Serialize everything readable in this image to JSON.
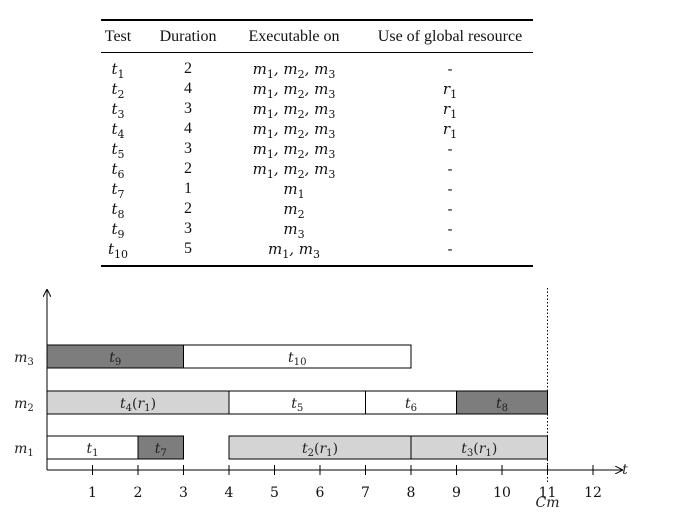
{
  "table": {
    "headers": [
      "Test",
      "Duration",
      "Executable on",
      "Use of global resource"
    ],
    "rows": [
      {
        "test": "t1",
        "duration": "2",
        "exec": "m1, m2, m3",
        "resource": "-"
      },
      {
        "test": "t2",
        "duration": "4",
        "exec": "m1, m2, m3",
        "resource": "r1"
      },
      {
        "test": "t3",
        "duration": "3",
        "exec": "m1, m2, m3",
        "resource": "r1"
      },
      {
        "test": "t4",
        "duration": "4",
        "exec": "m1, m2, m3",
        "resource": "r1"
      },
      {
        "test": "t5",
        "duration": "3",
        "exec": "m1, m2, m3",
        "resource": "-"
      },
      {
        "test": "t6",
        "duration": "2",
        "exec": "m1, m2, m3",
        "resource": "-"
      },
      {
        "test": "t7",
        "duration": "1",
        "exec": "m1",
        "resource": "-"
      },
      {
        "test": "t8",
        "duration": "2",
        "exec": "m2",
        "resource": "-"
      },
      {
        "test": "t9",
        "duration": "3",
        "exec": "m3",
        "resource": "-"
      },
      {
        "test": "t10",
        "duration": "5",
        "exec": "m1, m3",
        "resource": "-"
      }
    ]
  },
  "gantt": {
    "machines": [
      "m3",
      "m2",
      "m1"
    ],
    "axis_label": "t",
    "makespan_label": "Cm",
    "ticks": [
      1,
      2,
      3,
      4,
      5,
      6,
      7,
      8,
      9,
      10,
      11,
      12
    ],
    "makespan": 11,
    "colors": {
      "white": "#ffffff",
      "light": "#d4d4d4",
      "dark": "#7d7d7d"
    },
    "bars": [
      {
        "machine": "m3",
        "label": "t9",
        "start": 0,
        "end": 3,
        "fill": "dark"
      },
      {
        "machine": "m3",
        "label": "t10",
        "start": 3,
        "end": 8,
        "fill": "white"
      },
      {
        "machine": "m2",
        "label": "t4(r1)",
        "start": 0,
        "end": 4,
        "fill": "light"
      },
      {
        "machine": "m2",
        "label": "t5",
        "start": 4,
        "end": 7,
        "fill": "white"
      },
      {
        "machine": "m2",
        "label": "t6",
        "start": 7,
        "end": 9,
        "fill": "white"
      },
      {
        "machine": "m2",
        "label": "t8",
        "start": 9,
        "end": 11,
        "fill": "dark"
      },
      {
        "machine": "m1",
        "label": "t1",
        "start": 0,
        "end": 2,
        "fill": "white"
      },
      {
        "machine": "m1",
        "label": "t7",
        "start": 2,
        "end": 3,
        "fill": "dark"
      },
      {
        "machine": "m1",
        "label": "t2(r1)",
        "start": 4,
        "end": 8,
        "fill": "light"
      },
      {
        "machine": "m1",
        "label": "t3(r1)",
        "start": 8,
        "end": 11,
        "fill": "light"
      }
    ]
  }
}
